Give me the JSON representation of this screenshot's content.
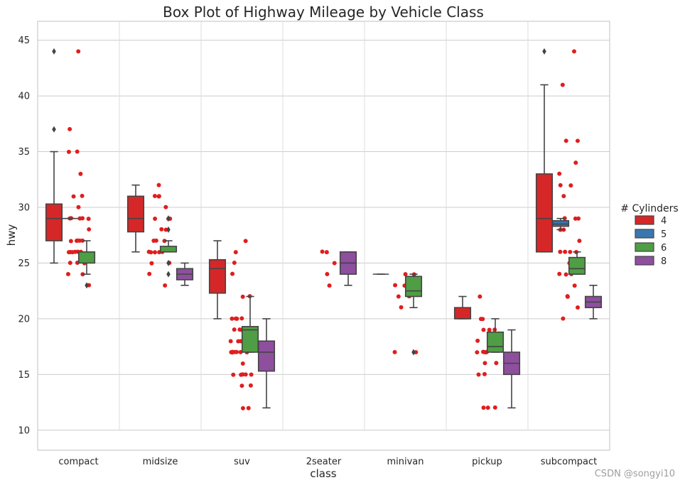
{
  "chart_data": {
    "type": "box",
    "title": "Box Plot of Highway Mileage by Vehicle Class",
    "xlabel": "class",
    "ylabel": "hwy",
    "ylim": [
      8.2,
      46.7
    ],
    "yticks": [
      10,
      15,
      20,
      25,
      30,
      35,
      40,
      45
    ],
    "categories": [
      "compact",
      "midsize",
      "suv",
      "2seater",
      "minivan",
      "pickup",
      "subcompact"
    ],
    "legend": {
      "title": "# Cylinders",
      "position": "center-right",
      "entries": [
        {
          "label": "4",
          "color": "#d62728"
        },
        {
          "label": "5",
          "color": "#3a76b0"
        },
        {
          "label": "6",
          "color": "#4f9e45"
        },
        {
          "label": "8",
          "color": "#8e4f9e"
        }
      ]
    },
    "groups": [
      "4",
      "5",
      "6",
      "8"
    ],
    "boxes": [
      {
        "category": "compact",
        "group": "4",
        "whislo": 25,
        "q1": 27,
        "med": 29,
        "q3": 30.3,
        "whishi": 35,
        "fliers": [
          37,
          44
        ]
      },
      {
        "category": "compact",
        "group": "5",
        "whislo": 29,
        "q1": 29,
        "med": 29,
        "q3": 29,
        "whishi": 29,
        "fliers": []
      },
      {
        "category": "compact",
        "group": "6",
        "whislo": 24,
        "q1": 25,
        "med": 26,
        "q3": 26,
        "whishi": 27,
        "fliers": [
          23
        ]
      },
      {
        "category": "midsize",
        "group": "4",
        "whislo": 26,
        "q1": 27.8,
        "med": 29,
        "q3": 31,
        "whishi": 32,
        "fliers": []
      },
      {
        "category": "midsize",
        "group": "6",
        "whislo": 26,
        "q1": 26,
        "med": 26,
        "q3": 26.5,
        "whishi": 27,
        "fliers": [
          24,
          25,
          28,
          29
        ]
      },
      {
        "category": "midsize",
        "group": "8",
        "whislo": 23,
        "q1": 23.5,
        "med": 24,
        "q3": 24.5,
        "whishi": 25,
        "fliers": []
      },
      {
        "category": "suv",
        "group": "4",
        "whislo": 20,
        "q1": 22.3,
        "med": 24.5,
        "q3": 25.3,
        "whishi": 27,
        "fliers": []
      },
      {
        "category": "suv",
        "group": "6",
        "whislo": 17,
        "q1": 17,
        "med": 19,
        "q3": 19.3,
        "whishi": 22,
        "fliers": []
      },
      {
        "category": "suv",
        "group": "8",
        "whislo": 12,
        "q1": 15.3,
        "med": 17,
        "q3": 18,
        "whishi": 20,
        "fliers": []
      },
      {
        "category": "2seater",
        "group": "8",
        "whislo": 23,
        "q1": 24,
        "med": 25,
        "q3": 26,
        "whishi": 26,
        "fliers": []
      },
      {
        "category": "minivan",
        "group": "4",
        "whislo": 24,
        "q1": 24,
        "med": 24,
        "q3": 24,
        "whishi": 24,
        "fliers": []
      },
      {
        "category": "minivan",
        "group": "6",
        "whislo": 21,
        "q1": 22,
        "med": 22.5,
        "q3": 23.8,
        "whishi": 24,
        "fliers": [
          17
        ]
      },
      {
        "category": "pickup",
        "group": "4",
        "whislo": 20,
        "q1": 20,
        "med": 20,
        "q3": 21,
        "whishi": 22,
        "fliers": []
      },
      {
        "category": "pickup",
        "group": "6",
        "whislo": 17,
        "q1": 17,
        "med": 17.5,
        "q3": 18.8,
        "whishi": 20,
        "fliers": []
      },
      {
        "category": "pickup",
        "group": "8",
        "whislo": 12,
        "q1": 15,
        "med": 16,
        "q3": 17,
        "whishi": 19,
        "fliers": []
      },
      {
        "category": "subcompact",
        "group": "4",
        "whislo": 26,
        "q1": 26,
        "med": 29,
        "q3": 33,
        "whishi": 41,
        "fliers": [
          44
        ]
      },
      {
        "category": "subcompact",
        "group": "5",
        "whislo": 28,
        "q1": 28.3,
        "med": 28.5,
        "q3": 28.8,
        "whishi": 29,
        "fliers": []
      },
      {
        "category": "subcompact",
        "group": "6",
        "whislo": 24,
        "q1": 24,
        "med": 24.5,
        "q3": 25.5,
        "whishi": 26,
        "fliers": []
      },
      {
        "category": "subcompact",
        "group": "8",
        "whislo": 20,
        "q1": 21,
        "med": 21.5,
        "q3": 22,
        "whishi": 23,
        "fliers": []
      }
    ],
    "strip_points": [
      {
        "category": "compact",
        "values": [
          44,
          37,
          35,
          35,
          33,
          31,
          31,
          30,
          29,
          29,
          29,
          29,
          29,
          28,
          27,
          27,
          27,
          27,
          27,
          26,
          26,
          26,
          26,
          26,
          26,
          25,
          25,
          25,
          24,
          24,
          23
        ]
      },
      {
        "category": "midsize",
        "values": [
          32,
          31,
          31,
          31,
          30,
          29,
          29,
          29,
          28,
          28,
          27,
          27,
          27,
          26,
          26,
          26,
          26,
          26,
          26,
          25,
          25,
          24,
          23
        ]
      },
      {
        "category": "suv",
        "values": [
          27,
          26,
          25,
          24,
          22,
          22,
          20,
          20,
          20,
          20,
          19,
          19,
          19,
          19,
          19,
          18,
          18,
          18,
          17,
          17,
          17,
          17,
          17,
          17,
          17,
          16,
          15,
          15,
          15,
          15,
          15,
          14,
          14,
          12,
          12
        ]
      },
      {
        "category": "2seater",
        "values": [
          26,
          26,
          25,
          24,
          23
        ]
      },
      {
        "category": "minivan",
        "values": [
          24,
          24,
          23,
          23,
          22,
          22,
          22,
          21,
          17,
          17
        ]
      },
      {
        "category": "pickup",
        "values": [
          22,
          20,
          20,
          19,
          19,
          19,
          18,
          18,
          17,
          17,
          17,
          17,
          17,
          16,
          16,
          15,
          15,
          12,
          12,
          12
        ]
      },
      {
        "category": "subcompact",
        "values": [
          44,
          41,
          36,
          36,
          34,
          33,
          32,
          32,
          31,
          29,
          29,
          29,
          28,
          28,
          27,
          26,
          26,
          26,
          26,
          25,
          24,
          24,
          24,
          23,
          22,
          22,
          21,
          20
        ]
      }
    ]
  },
  "watermark": "CSDN @songyi10"
}
